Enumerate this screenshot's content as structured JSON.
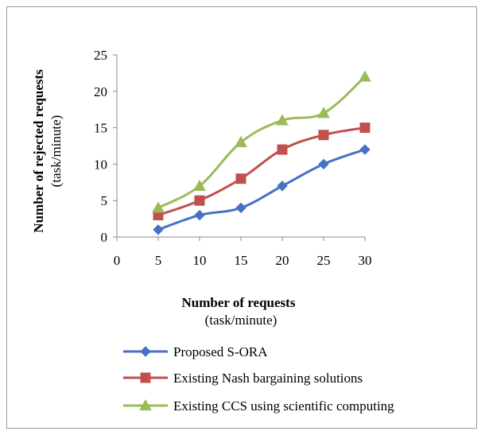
{
  "chart_data": {
    "type": "line",
    "x": [
      5,
      10,
      15,
      20,
      25,
      30
    ],
    "series": [
      {
        "name": "Proposed S-ORA",
        "values": [
          1,
          3,
          4,
          7,
          10,
          12
        ],
        "color": "#4572c4",
        "marker": "diamond"
      },
      {
        "name": "Existing Nash bargaining solutions",
        "values": [
          3,
          5,
          8,
          12,
          14,
          15
        ],
        "color": "#c0504d",
        "marker": "square"
      },
      {
        "name": "Existing CCS using scientific computing",
        "values": [
          4,
          7,
          13,
          16,
          17,
          22
        ],
        "color": "#9bbb59",
        "marker": "triangle"
      }
    ],
    "x_ticks": [
      "0",
      "5",
      "10",
      "15",
      "20",
      "25",
      "30"
    ],
    "y_ticks": [
      "0",
      "5",
      "10",
      "15",
      "20",
      "25"
    ],
    "xlabel": "Number of requests",
    "xlabel_unit": "(task/minute)",
    "ylabel": "Number of rejected requests",
    "ylabel_unit": "(task/minute)",
    "xlim": [
      0,
      30
    ],
    "ylim": [
      0,
      25
    ],
    "grid": false,
    "legend_position": "bottom"
  }
}
